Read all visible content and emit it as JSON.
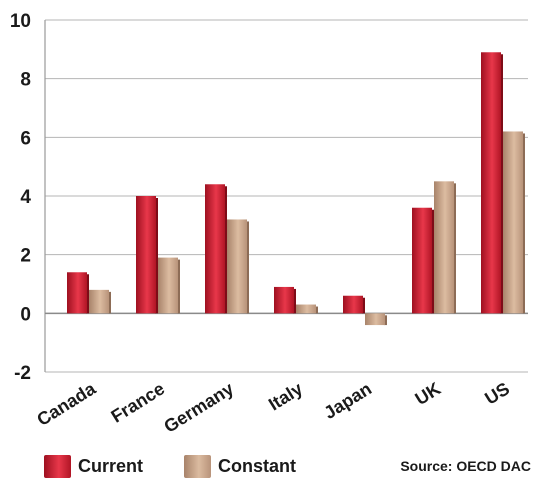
{
  "chart_data": {
    "type": "bar",
    "categories": [
      "Canada",
      "France",
      "Germany",
      "Italy",
      "Japan",
      "UK",
      "US"
    ],
    "series": [
      {
        "name": "Current",
        "values": [
          1.4,
          4.0,
          4.4,
          0.9,
          0.6,
          3.6,
          8.9
        ],
        "color": "#d42234"
      },
      {
        "name": "Constant",
        "values": [
          0.8,
          1.9,
          3.2,
          0.3,
          -0.4,
          4.5,
          6.2
        ],
        "color": "#c8a58a"
      }
    ],
    "y_ticks": [
      10,
      8,
      6,
      4,
      2,
      0,
      -2
    ],
    "ylim": [
      -2,
      10
    ],
    "grid": true,
    "legend_position": "bottom-left"
  },
  "legend": {
    "current_label": "Current",
    "constant_label": "Constant"
  },
  "source": "Source: OECD DAC"
}
